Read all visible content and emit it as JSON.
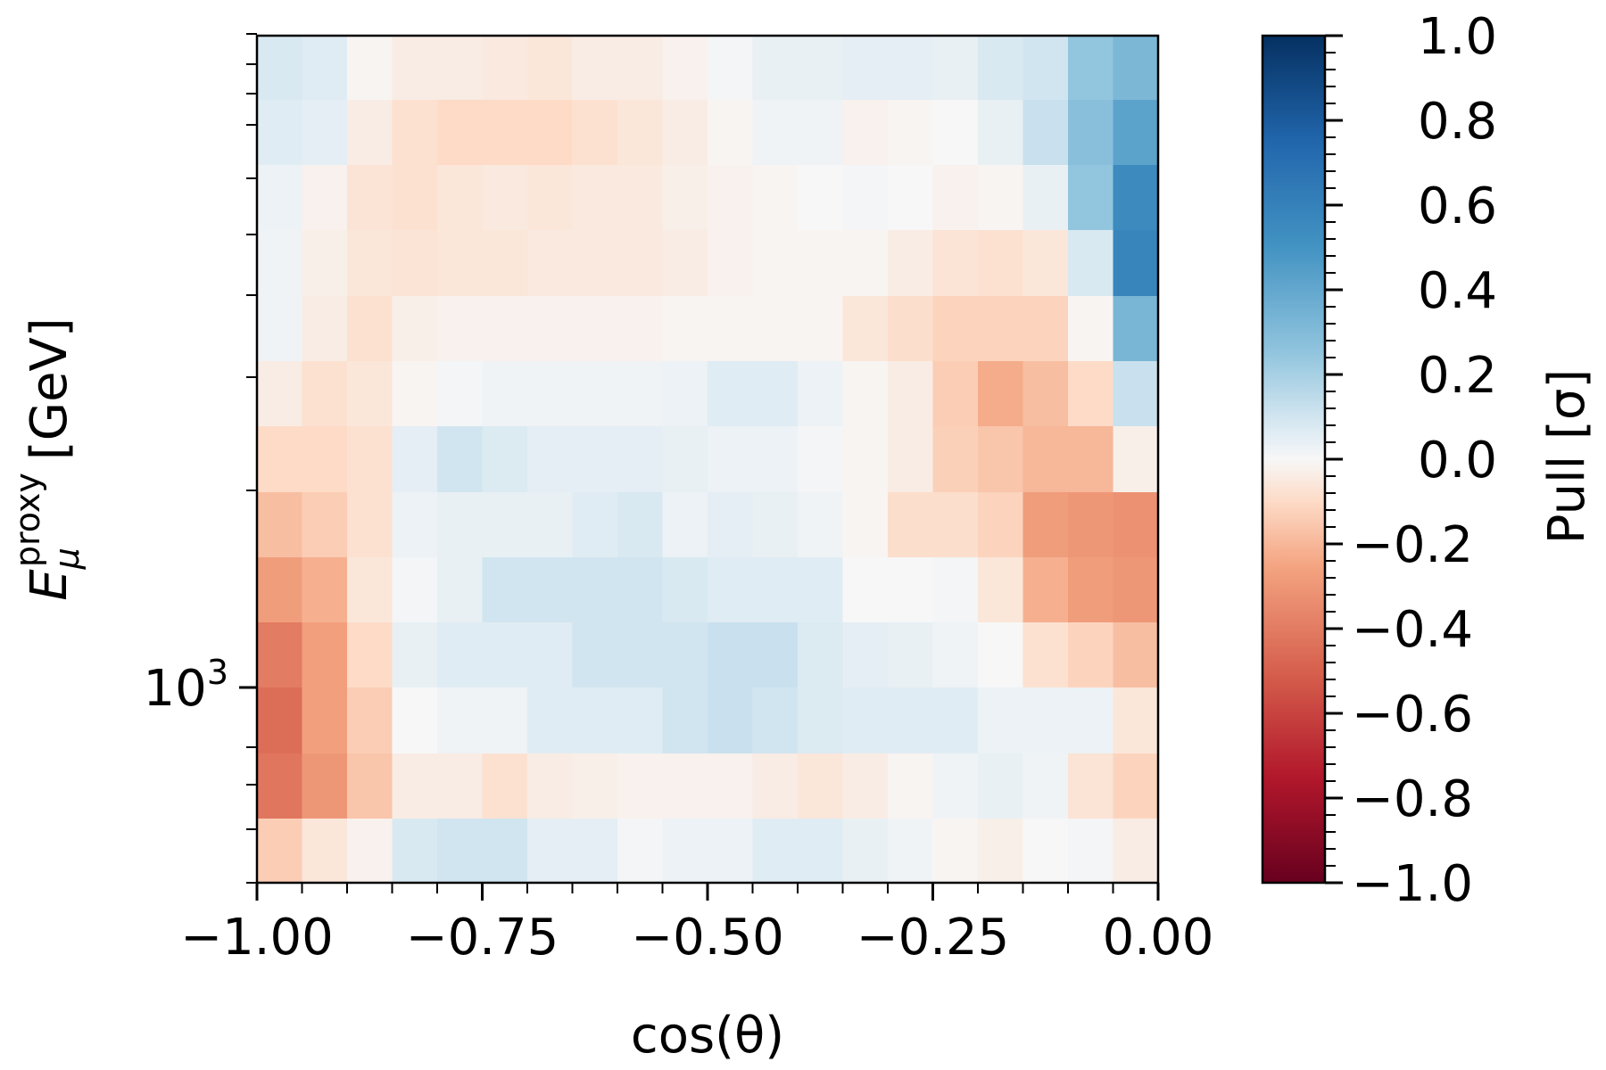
{
  "chart_data": {
    "type": "heatmap",
    "title": "",
    "xlabel": "cos(θ)",
    "ylabel_main": "E",
    "ylabel_sub": "μ",
    "ylabel_sup": "proxy",
    "ylabel_unit": "[GeV]",
    "xlim": [
      -1.0,
      0.0
    ],
    "x_ticks": [
      -1.0,
      -0.75,
      -0.5,
      -0.25,
      0.0
    ],
    "x_tick_labels": [
      "−1.00",
      "−0.75",
      "−0.50",
      "−0.25",
      "0.00"
    ],
    "y_scale": "log",
    "y_tick_label_base": "10",
    "y_tick_label_exp": "3",
    "colorbar": {
      "label": "Pull [σ]",
      "range": [
        -1.0,
        1.0
      ],
      "colormap": "RdBu",
      "tick_values": [
        1.0,
        0.8,
        0.6,
        0.4,
        0.2,
        0.0,
        -0.2,
        -0.4,
        -0.6,
        -0.8,
        -1.0
      ],
      "tick_labels": [
        "1.0",
        "0.8",
        "0.6",
        "0.4",
        "0.2",
        "0.0",
        "−0.2",
        "−0.4",
        "−0.6",
        "−0.8",
        "−1.0"
      ]
    },
    "grid_note": "rows listed top (highest energy) to bottom; columns from cos(θ)=-1.00 to 0.00 in 20 bins",
    "values": [
      [
        0.08,
        0.06,
        -0.01,
        -0.04,
        -0.04,
        -0.05,
        -0.06,
        -0.04,
        -0.04,
        -0.02,
        0.01,
        0.04,
        0.04,
        0.05,
        0.05,
        0.04,
        0.08,
        0.1,
        0.25,
        0.32
      ],
      [
        0.06,
        0.05,
        -0.04,
        -0.08,
        -0.1,
        -0.1,
        -0.1,
        -0.08,
        -0.06,
        -0.04,
        -0.01,
        0.02,
        0.02,
        -0.02,
        -0.01,
        0.0,
        0.04,
        0.12,
        0.28,
        0.42
      ],
      [
        0.03,
        -0.02,
        -0.07,
        -0.08,
        -0.06,
        -0.05,
        -0.06,
        -0.05,
        -0.05,
        -0.03,
        -0.02,
        -0.01,
        0.0,
        0.01,
        0.0,
        -0.02,
        -0.01,
        0.04,
        0.25,
        0.55
      ],
      [
        0.02,
        -0.03,
        -0.06,
        -0.07,
        -0.06,
        -0.06,
        -0.05,
        -0.05,
        -0.05,
        -0.04,
        -0.02,
        -0.01,
        -0.01,
        -0.01,
        -0.04,
        -0.07,
        -0.08,
        -0.06,
        0.08,
        0.58
      ],
      [
        0.02,
        -0.04,
        -0.08,
        -0.03,
        -0.02,
        -0.02,
        -0.02,
        -0.02,
        -0.02,
        -0.01,
        -0.01,
        -0.01,
        -0.01,
        -0.06,
        -0.09,
        -0.12,
        -0.12,
        -0.12,
        -0.01,
        0.33
      ],
      [
        -0.04,
        -0.08,
        -0.06,
        -0.01,
        0.01,
        0.02,
        0.02,
        0.02,
        0.02,
        0.03,
        0.06,
        0.06,
        0.03,
        -0.01,
        -0.04,
        -0.14,
        -0.23,
        -0.18,
        -0.1,
        0.12
      ],
      [
        -0.1,
        -0.1,
        -0.08,
        0.05,
        0.1,
        0.07,
        0.05,
        0.05,
        0.05,
        0.04,
        0.03,
        0.03,
        0.01,
        -0.01,
        -0.04,
        -0.13,
        -0.16,
        -0.2,
        -0.2,
        -0.03
      ],
      [
        -0.18,
        -0.14,
        -0.08,
        0.03,
        0.04,
        0.04,
        0.04,
        0.06,
        0.08,
        0.03,
        0.05,
        0.04,
        0.02,
        -0.01,
        -0.09,
        -0.09,
        -0.12,
        -0.28,
        -0.3,
        -0.32
      ],
      [
        -0.28,
        -0.22,
        -0.06,
        0.01,
        0.04,
        0.1,
        0.1,
        0.1,
        0.1,
        0.08,
        0.06,
        0.06,
        0.06,
        0.0,
        0.0,
        0.01,
        -0.06,
        -0.22,
        -0.28,
        -0.3
      ],
      [
        -0.4,
        -0.27,
        -0.1,
        0.04,
        0.06,
        0.06,
        0.06,
        0.1,
        0.1,
        0.1,
        0.12,
        0.12,
        0.07,
        0.05,
        0.04,
        0.02,
        0.0,
        -0.08,
        -0.12,
        -0.18
      ],
      [
        -0.45,
        -0.27,
        -0.14,
        0.0,
        0.02,
        0.02,
        0.06,
        0.06,
        0.06,
        0.1,
        0.12,
        0.1,
        0.07,
        0.06,
        0.06,
        0.06,
        0.03,
        0.03,
        0.03,
        -0.06
      ],
      [
        -0.42,
        -0.3,
        -0.16,
        -0.04,
        -0.04,
        -0.08,
        -0.04,
        -0.03,
        -0.02,
        -0.02,
        -0.02,
        -0.04,
        -0.06,
        -0.04,
        -0.01,
        0.02,
        0.04,
        0.02,
        -0.07,
        -0.12
      ],
      [
        -0.14,
        -0.06,
        -0.02,
        0.08,
        0.1,
        0.1,
        0.05,
        0.05,
        0.01,
        0.03,
        0.03,
        0.06,
        0.06,
        0.04,
        0.02,
        -0.01,
        -0.03,
        0.0,
        0.01,
        -0.04
      ]
    ]
  }
}
